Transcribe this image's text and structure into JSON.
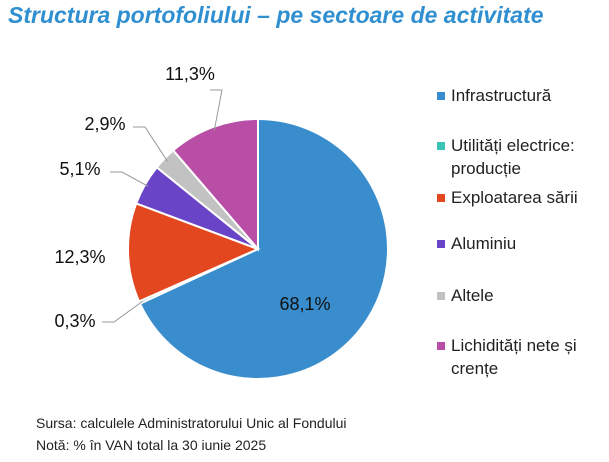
{
  "chart_data": {
    "type": "pie",
    "title": "Structura portofoliului – pe sectoare de activitate",
    "categories": [
      "Infrastructură",
      "Utilități electrice: producție",
      "Exploatarea sării",
      "Aluminiu",
      "Altele",
      "Lichidități nete și crențe"
    ],
    "values": [
      68.1,
      0.3,
      12.3,
      5.1,
      2.9,
      11.3
    ],
    "value_labels": [
      "68,1%",
      "0,3%",
      "12,3%",
      "5,1%",
      "2,9%",
      "11,3%"
    ],
    "colors": [
      "#3a8dcc",
      "#3cc3b5",
      "#e2471f",
      "#6a44c6",
      "#c2c2c2",
      "#b84ea6"
    ],
    "notes": [
      "Sursa: calculele Administratorului Unic al Fondului",
      "Notă: % în VAN total la 30 iunie 2025"
    ]
  }
}
